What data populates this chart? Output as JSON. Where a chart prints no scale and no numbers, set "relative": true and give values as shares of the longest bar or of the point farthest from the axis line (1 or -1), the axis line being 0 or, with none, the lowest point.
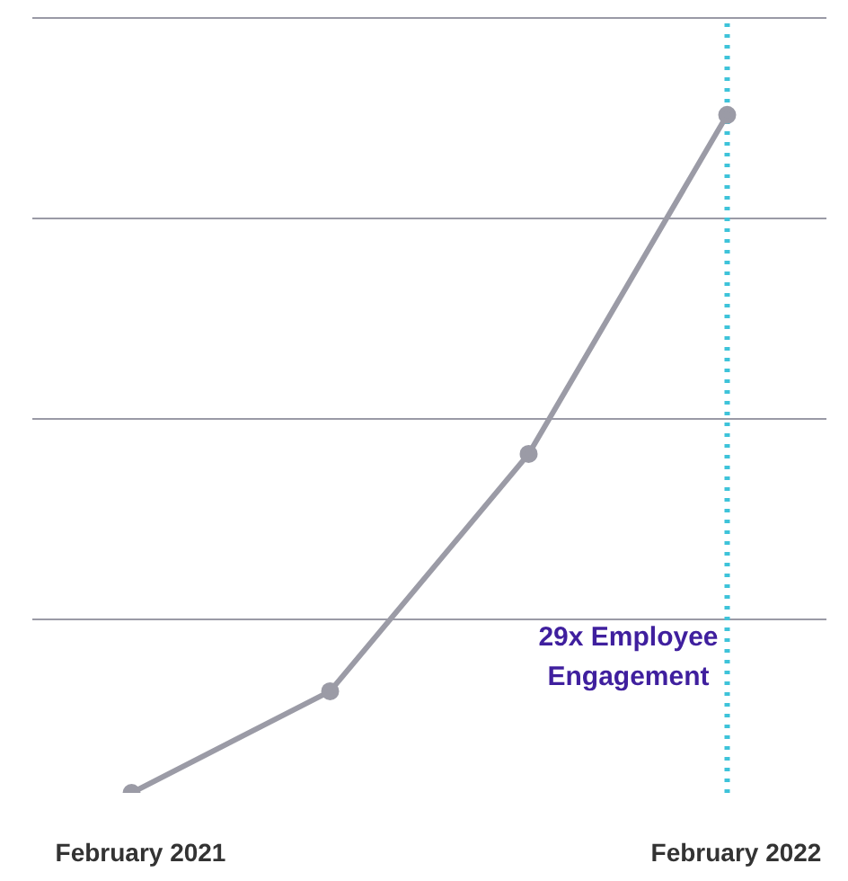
{
  "chart_data": {
    "type": "line",
    "relative": true,
    "categories": [
      "February 2021",
      null,
      null,
      "February 2022"
    ],
    "series": [
      {
        "color": "#9b9ba6",
        "values": [
          0,
          0.15,
          0.5,
          1
        ]
      }
    ],
    "marker": "circle",
    "grid": "y",
    "legend": false,
    "ref_lines": [
      {
        "axis": "x",
        "value": "February 2022",
        "label": "29x Employee Engagement",
        "color": "#3ec3d9",
        "line_style": "dotted"
      }
    ]
  }
}
